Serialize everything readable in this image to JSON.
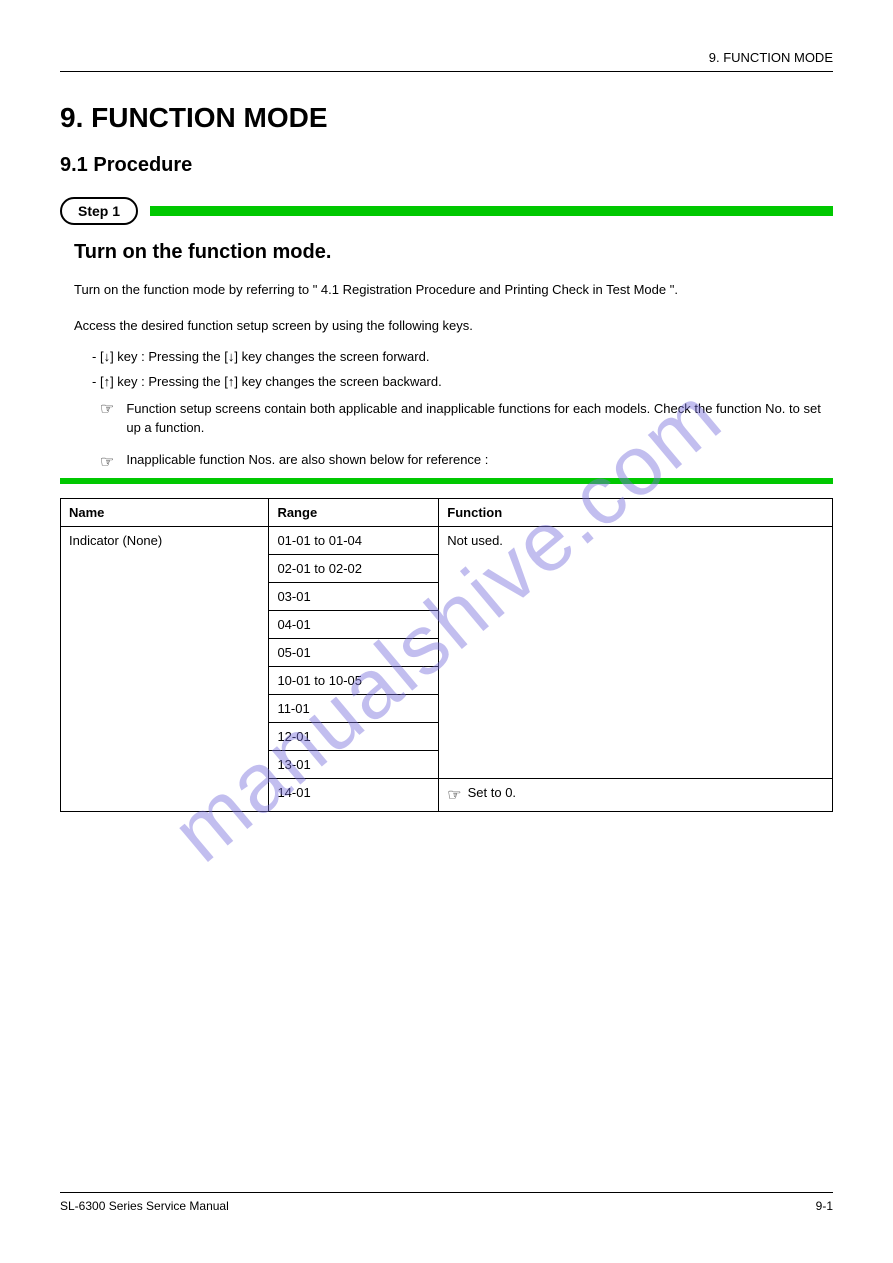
{
  "colors": {
    "green": "#00c800",
    "watermark": "rgba(120,110,220,0.45)",
    "text": "#000000",
    "bg": "#ffffff",
    "border": "#000000"
  },
  "header": {
    "right": "9. FUNCTION MODE"
  },
  "title_main": "9. FUNCTION MODE",
  "title_sub": "9.1 Procedure",
  "step_badge": "Step 1",
  "step_title": "Turn on the function mode.",
  "body1": "Turn on the function mode by referring to \" 4.1 Registration Procedure and Printing Check in Test Mode \".",
  "list_intro": "Access the desired function setup screen by using the following keys.",
  "list_items": [
    "[↓] key : Pressing the [↓] key changes the screen forward.",
    "[↑] key : Pressing the [↑] key changes the screen backward."
  ],
  "notes": [
    "Function setup screens contain both applicable and inapplicable functions for each models. Check the function No. to set up a function.",
    "Inapplicable function Nos. are also shown below for reference :"
  ],
  "table": {
    "columns": [
      "Name",
      "Range",
      "Function"
    ],
    "col_widths": [
      "27%",
      "22%",
      "51%"
    ],
    "header_fontsize": 13,
    "cell_fontsize": 13,
    "border_color": "#000000",
    "groups": [
      {
        "name": "Indicator (None)",
        "ranges": [
          "01-01 to 01-04",
          "02-01 to 02-02",
          "03-01",
          "04-01",
          "05-01",
          "10-01 to 10-05",
          "11-01",
          "12-01",
          "13-01"
        ],
        "func_text": "Not used.",
        "func_rowspan": 9
      },
      {
        "name": "",
        "ranges": [
          "14-01"
        ],
        "func_note_icon": true,
        "func_text": "Set to 0."
      }
    ]
  },
  "footer": {
    "left": "SL-6300 Series Service Manual",
    "right": "9-1"
  },
  "watermark": "manualshive.com"
}
